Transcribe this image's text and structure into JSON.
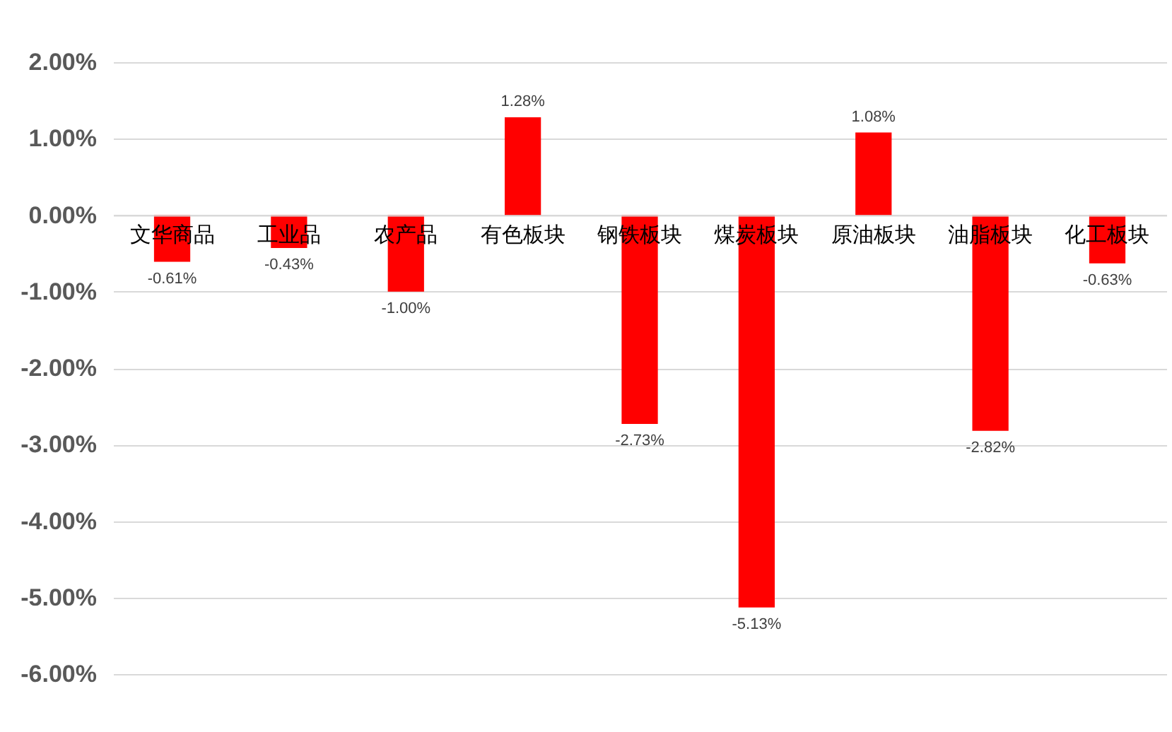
{
  "chart_data": {
    "type": "bar",
    "categories": [
      "文华商品",
      "工业品",
      "农产品",
      "有色板块",
      "钢铁板块",
      "煤炭板块",
      "原油板块",
      "油脂板块",
      "化工板块"
    ],
    "values": [
      -0.61,
      -0.43,
      -1.0,
      1.28,
      -2.73,
      -5.13,
      1.08,
      -2.82,
      -0.63
    ],
    "value_labels": [
      "-0.61%",
      "-0.43%",
      "-1.00%",
      "1.28%",
      "-2.73%",
      "-5.13%",
      "1.08%",
      "-2.82%",
      "-0.63%"
    ],
    "color": "#ff0000",
    "ylim": [
      -6,
      2
    ],
    "yticks": [
      {
        "value": 2,
        "label": "2.00%"
      },
      {
        "value": 1,
        "label": "1.00%"
      },
      {
        "value": 0,
        "label": "0.00%"
      },
      {
        "value": -1,
        "label": "-1.00%"
      },
      {
        "value": -2,
        "label": "-2.00%"
      },
      {
        "value": -3,
        "label": "-3.00%"
      },
      {
        "value": -4,
        "label": "-4.00%"
      },
      {
        "value": -5,
        "label": "-5.00%"
      },
      {
        "value": -6,
        "label": "-6.00%"
      }
    ],
    "grid": "y"
  }
}
